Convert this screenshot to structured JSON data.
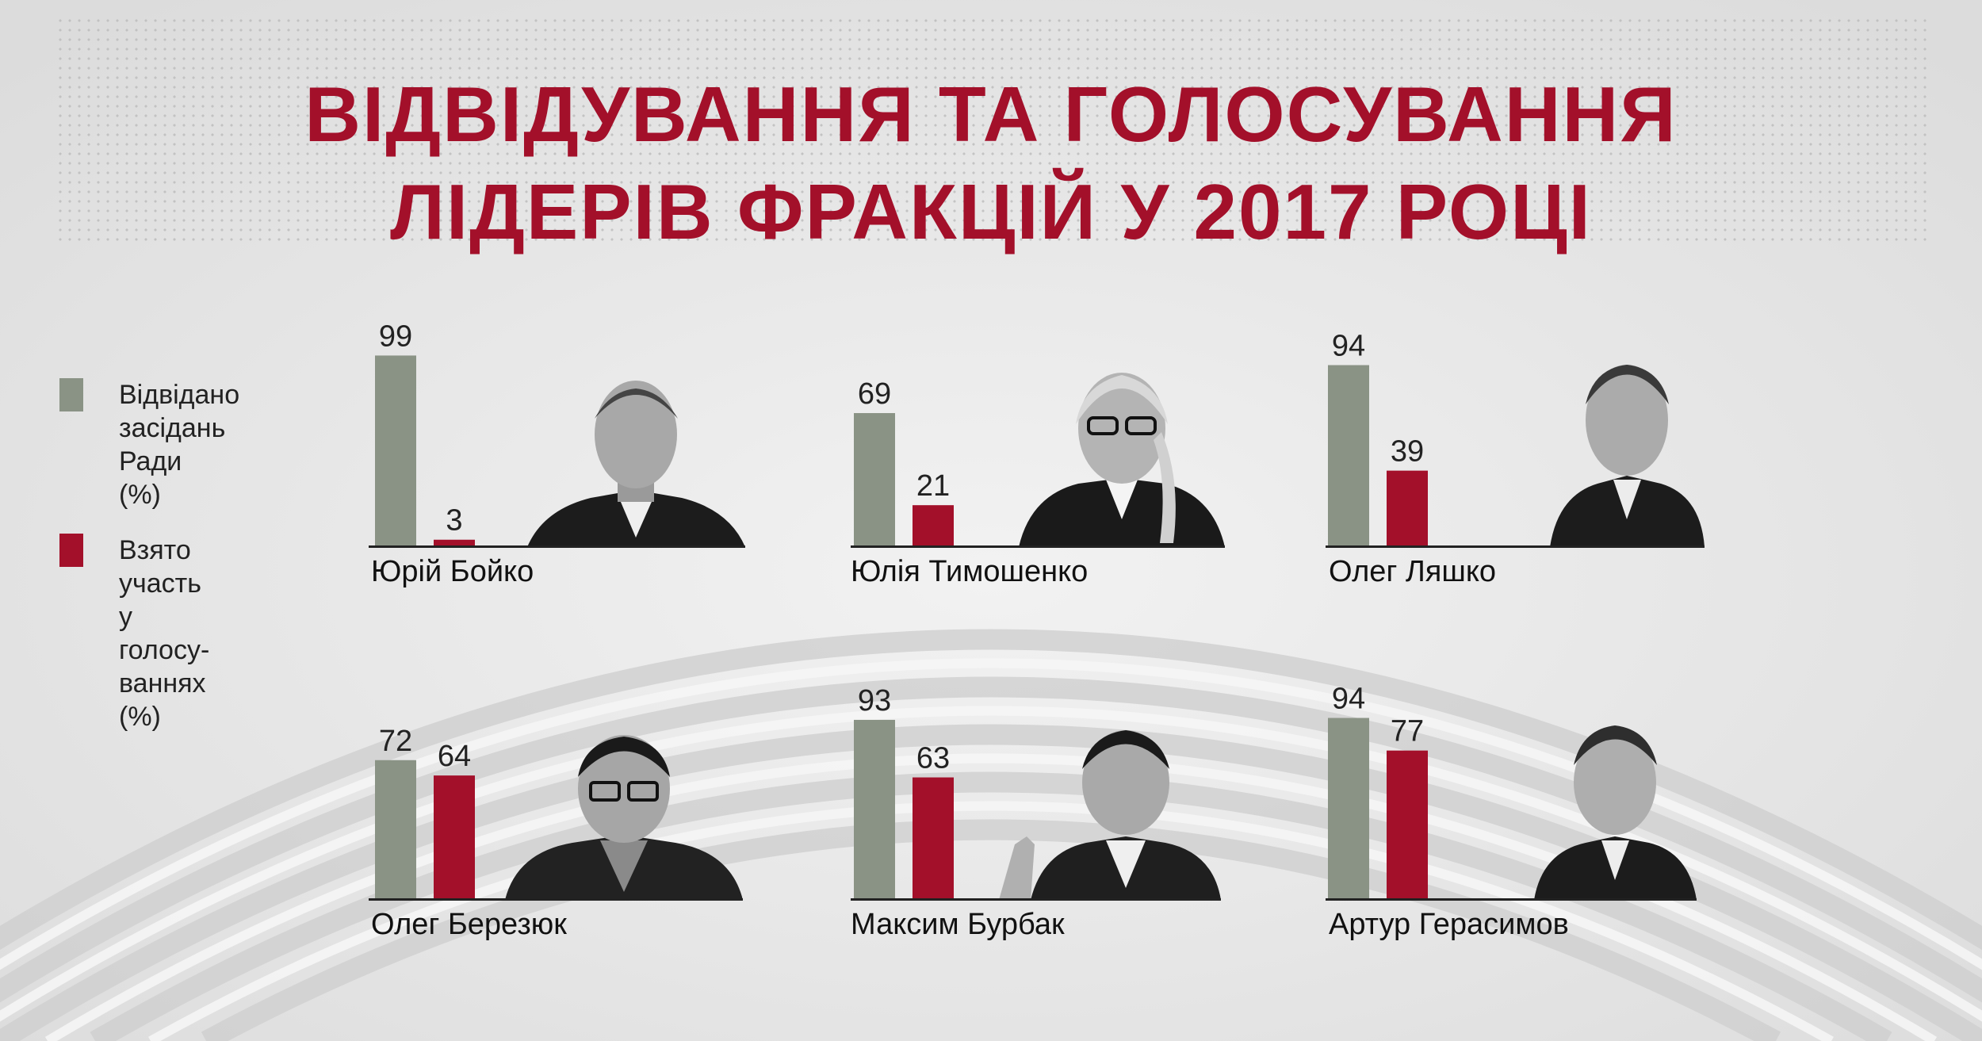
{
  "title": {
    "line1": "ВІДВІДУВАННЯ ТА ГОЛОСУВАННЯ",
    "line2": "ЛІДЕРІВ ФРАКЦІЙ У 2017 РОЦІ"
  },
  "legend": {
    "attended": "Відвідано засідань Ради (%)",
    "voted": "Взято участь у голосу- ваннях (%)"
  },
  "colors": {
    "attended": "#8a9385",
    "voted": "#a3102a",
    "title": "#a3102a"
  },
  "chart_data": {
    "type": "bar",
    "ylim": [
      0,
      100
    ],
    "series": [
      {
        "name": "Відвідано засідань Ради (%)",
        "key": "attended"
      },
      {
        "name": "Взято участь у голосуваннях (%)",
        "key": "voted"
      }
    ],
    "panels": [
      {
        "name": "Юрій Бойко",
        "attended": 99,
        "voted": 3
      },
      {
        "name": "Юлія Тимошенко",
        "attended": 69,
        "voted": 21
      },
      {
        "name": "Олег Ляшко",
        "attended": 94,
        "voted": 39
      },
      {
        "name": "Олег Березюк",
        "attended": 72,
        "voted": 64
      },
      {
        "name": "Максим Бурбак",
        "attended": 93,
        "voted": 63
      },
      {
        "name": "Артур Герасимов",
        "attended": 94,
        "voted": 77
      }
    ]
  }
}
